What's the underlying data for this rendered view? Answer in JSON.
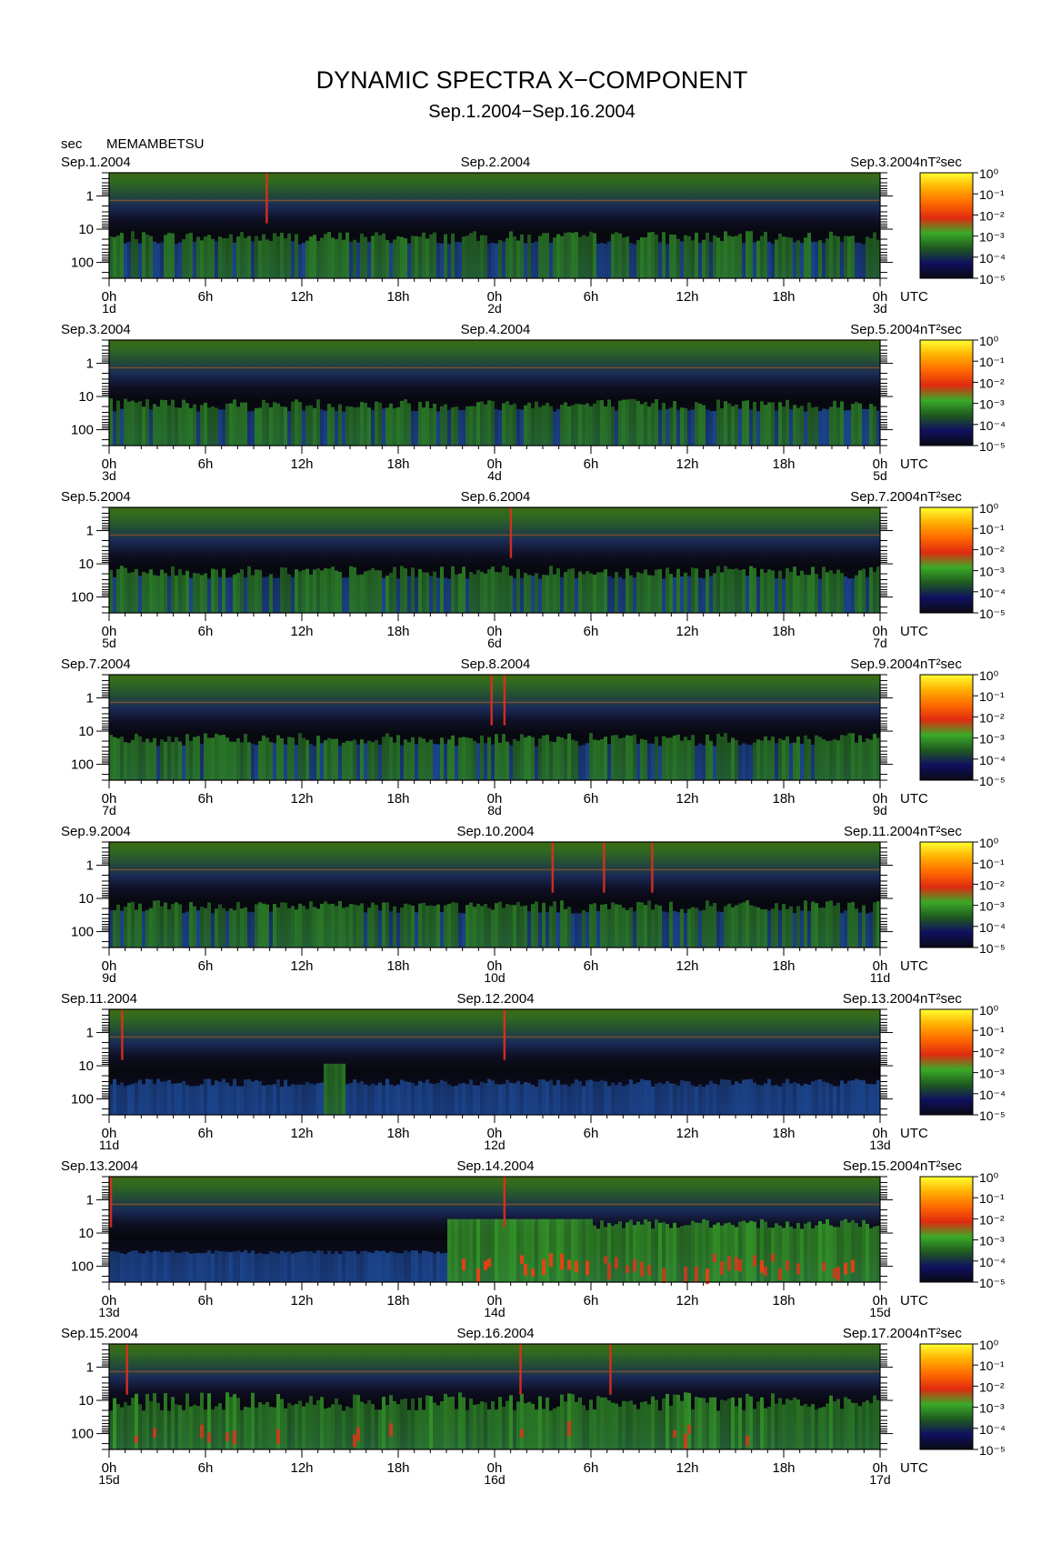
{
  "header": {
    "title": "DYNAMIC SPECTRA X−COMPONENT",
    "subtitle": "Sep.1.2004−Sep.16.2004",
    "unit_label": "sec",
    "station": "MEMAMBETSU"
  },
  "chart_data": {
    "type": "heatmap",
    "title": "DYNAMIC SPECTRA X−COMPONENT",
    "subtitle": "Sep.1.2004−Sep.16.2004",
    "ylabel": "sec",
    "station": "MEMAMBETSU",
    "y_axis": {
      "scale": "log",
      "range": [
        0.2,
        300
      ],
      "ticks": [
        "1",
        "10",
        "100"
      ]
    },
    "x_tick_labels": [
      "0h",
      "6h",
      "12h",
      "18h",
      "0h",
      "6h",
      "12h",
      "18h",
      "0h"
    ],
    "x_unit": "UTC",
    "colorbar": {
      "unit": "nT²sec",
      "ticks": [
        "10⁰",
        "10⁻¹",
        "10⁻²",
        "10⁻³",
        "10⁻⁴",
        "10⁻⁵"
      ],
      "scale": "log",
      "colors": [
        "#0a0a14",
        "#101060",
        "#1f5a1f",
        "#3aaa28",
        "#e02a10",
        "#ff6a00",
        "#ffb000",
        "#ffff30"
      ]
    },
    "panels": [
      {
        "left_date": "Sep.1.2004",
        "mid_date": "Sep.2.2004",
        "right_date": "Sep.3.2004",
        "day_labels": [
          "1d",
          "2d",
          "3d"
        ],
        "activity": "moderate",
        "hot_spots_hours": [
          9.8
        ]
      },
      {
        "left_date": "Sep.3.2004",
        "mid_date": "Sep.4.2004",
        "right_date": "Sep.5.2004",
        "day_labels": [
          "3d",
          "4d",
          "5d"
        ],
        "activity": "moderate",
        "hot_spots_hours": []
      },
      {
        "left_date": "Sep.5.2004",
        "mid_date": "Sep.6.2004",
        "right_date": "Sep.7.2004",
        "day_labels": [
          "5d",
          "6d",
          "7d"
        ],
        "activity": "moderate",
        "hot_spots_hours": [
          25
        ]
      },
      {
        "left_date": "Sep.7.2004",
        "mid_date": "Sep.8.2004",
        "right_date": "Sep.9.2004",
        "day_labels": [
          "7d",
          "8d",
          "9d"
        ],
        "activity": "moderate",
        "hot_spots_hours": [
          23.8,
          24.6
        ]
      },
      {
        "left_date": "Sep.9.2004",
        "mid_date": "Sep.10.2004",
        "right_date": "Sep.11.2004",
        "day_labels": [
          "9d",
          "10d",
          "11d"
        ],
        "activity": "moderate",
        "hot_spots_hours": [
          27.6,
          30.8,
          33.8
        ]
      },
      {
        "left_date": "Sep.11.2004",
        "mid_date": "Sep.12.2004",
        "right_date": "Sep.13.2004",
        "day_labels": [
          "11d",
          "12d",
          "13d"
        ],
        "activity": "quiet",
        "hot_spots_hours": [
          0.8,
          24.6
        ]
      },
      {
        "left_date": "Sep.13.2004",
        "mid_date": "Sep.14.2004",
        "right_date": "Sep.15.2004",
        "day_labels": [
          "13d",
          "14d",
          "15d"
        ],
        "activity": "storm",
        "hot_spots_hours": [
          0.1,
          24.6
        ]
      },
      {
        "left_date": "Sep.15.2004",
        "mid_date": "Sep.16.2004",
        "right_date": "Sep.17.2004",
        "day_labels": [
          "15d",
          "16d",
          "17d"
        ],
        "activity": "active",
        "hot_spots_hours": [
          1.1,
          25.6,
          31.2
        ]
      }
    ]
  }
}
